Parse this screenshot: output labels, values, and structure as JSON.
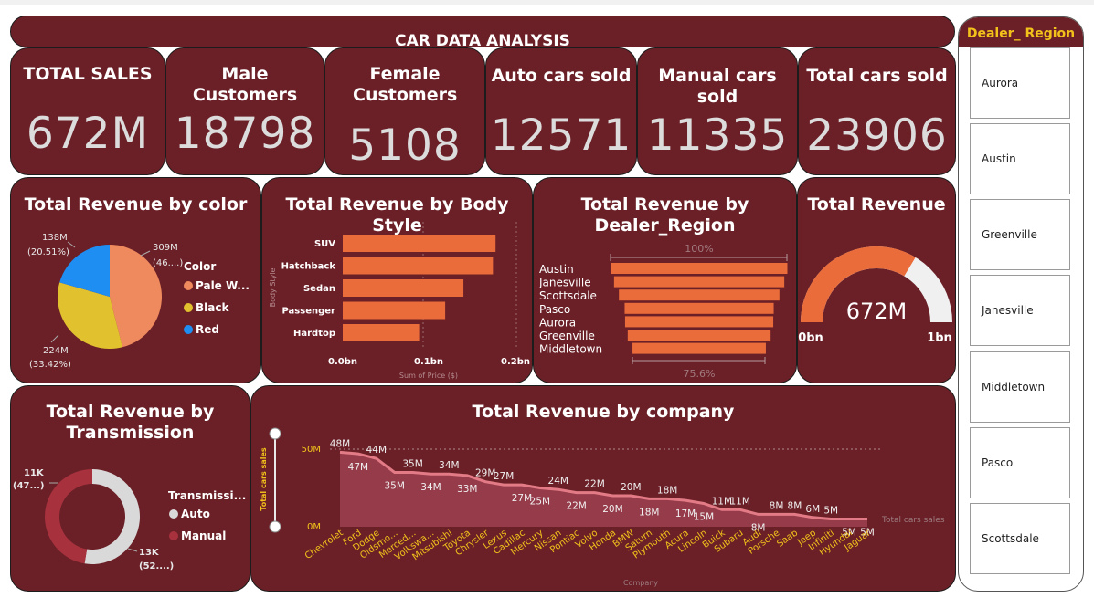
{
  "header": {
    "title": "CAR DATA ANALYSIS"
  },
  "kpis": [
    {
      "title": "TOTAL SALES",
      "value": "672M"
    },
    {
      "title": "Male Customers",
      "value": "18798"
    },
    {
      "title": "Female Customers",
      "value": "5108"
    },
    {
      "title": "Auto cars sold",
      "value": "12571"
    },
    {
      "title": "Manual cars sold",
      "value": "11335"
    },
    {
      "title": "Total cars sold",
      "value": "23906"
    }
  ],
  "color_chart": {
    "title": "Total Revenue by color",
    "legend_title": "Color",
    "legend": [
      "Pale W...",
      "Black",
      "Red"
    ],
    "labels": {
      "pale": "309M",
      "pale_pct": "(46....)",
      "black": "224M",
      "black_pct": "(33.42%)",
      "red": "138M",
      "red_pct": "(20.51%)"
    }
  },
  "body_chart": {
    "title": "Total Revenue by Body Style",
    "ylabel": "Body Style",
    "xlabel": "Sum of Price ($)",
    "ticks": [
      "0.0bn",
      "0.1bn",
      "0.2bn"
    ]
  },
  "region_chart": {
    "title": "Total Revenue by Dealer_Region",
    "top_label": "100%",
    "bottom_label": "75.6%"
  },
  "gauge": {
    "title": "Total Revenue",
    "value": "672M",
    "min": "0bn",
    "max": "1bn",
    "fraction": 0.672
  },
  "trans_chart": {
    "title": "Total Revenue by Transmission",
    "legend_title": "Transmissi...",
    "legend": [
      "Auto",
      "Manual"
    ],
    "labels": {
      "manual": "11K",
      "manual_pct": "(47...)",
      "auto": "13K",
      "auto_pct": "(52....)"
    }
  },
  "company_chart": {
    "title": "Total Revenue by company",
    "ylabel": "Total cars sales",
    "xlabel": "Company",
    "series_label": "Total cars sales",
    "ytick_top": "50M",
    "ytick_bottom": "0M"
  },
  "slicer": {
    "title": "Dealer_ Region",
    "items": [
      "Aurora",
      "Austin",
      "Greenville",
      "Janesville",
      "Middletown",
      "Pasco",
      "Scottsdale"
    ]
  },
  "chart_data": [
    {
      "type": "pie",
      "title": "Total Revenue by color",
      "categories": [
        "Pale White",
        "Black",
        "Red"
      ],
      "values": [
        309,
        224,
        138
      ],
      "unit": "M",
      "colors": [
        "#ef8a5e",
        "#e2c12f",
        "#1e8ef2"
      ]
    },
    {
      "type": "bar",
      "title": "Total Revenue by Body Style",
      "categories": [
        "SUV",
        "Hatchback",
        "Sedan",
        "Passenger",
        "Hardtop"
      ],
      "values": [
        0.176,
        0.173,
        0.139,
        0.118,
        0.088
      ],
      "xlim": [
        0,
        0.2
      ],
      "xlabel": "Sum of Price ($)",
      "ylabel": "Body Style",
      "unit": "bn",
      "color": "#ea6c3a"
    },
    {
      "type": "bar",
      "title": "Total Revenue by Dealer_Region",
      "categories": [
        "Austin",
        "Janesville",
        "Scottsdale",
        "Pasco",
        "Aurora",
        "Greenville",
        "Middletown"
      ],
      "values": [
        100,
        96.5,
        91,
        84.5,
        84,
        81,
        75.6
      ],
      "unit": "%",
      "color": "#ea6c3a"
    },
    {
      "type": "pie",
      "title": "Total Revenue by Transmission",
      "categories": [
        "Auto",
        "Manual"
      ],
      "values": [
        52.6,
        47.4
      ],
      "unit": "%",
      "colors": [
        "#d9d9d9",
        "#a8313e"
      ]
    },
    {
      "type": "area",
      "title": "Total Revenue by company",
      "categories": [
        "Chevrolet",
        "Ford",
        "Dodge",
        "Oldsmo...",
        "Merced...",
        "Volkswa...",
        "Mitsubishi",
        "Toyota",
        "Chrysler",
        "Lexus",
        "Cadillac",
        "Mercury",
        "Nissan",
        "Pontiac",
        "Volvo",
        "Honda",
        "BMW",
        "Saturn",
        "Plymouth",
        "Acura",
        "Lincoln",
        "Buick",
        "Subaru",
        "Audi",
        "Porsche",
        "Saab",
        "Jeep",
        "Infiniti",
        "Hyundai",
        "Jaguar"
      ],
      "values": [
        48,
        47,
        44,
        35,
        35,
        34,
        34,
        33,
        29,
        27,
        27,
        25,
        24,
        22,
        22,
        20,
        20,
        18,
        18,
        17,
        15,
        11,
        11,
        8,
        8,
        8,
        6,
        5,
        5,
        5
      ],
      "value_labels": [
        "48M",
        "47M",
        "44M",
        "35M",
        "35M",
        "34M",
        "34M",
        "33M",
        "29M",
        "27M",
        "27M",
        "25M",
        "24M",
        "22M",
        "22M",
        "20M",
        "20M",
        "18M",
        "18M",
        "17M",
        "15M",
        "11M",
        "11M",
        "8M",
        "8M",
        "8M",
        "6M",
        "5M",
        "5M",
        "5M"
      ],
      "ylim": [
        0,
        50
      ],
      "xlabel": "Company",
      "ylabel": "Total cars sales",
      "unit": "M",
      "color": "#e37b86"
    }
  ]
}
